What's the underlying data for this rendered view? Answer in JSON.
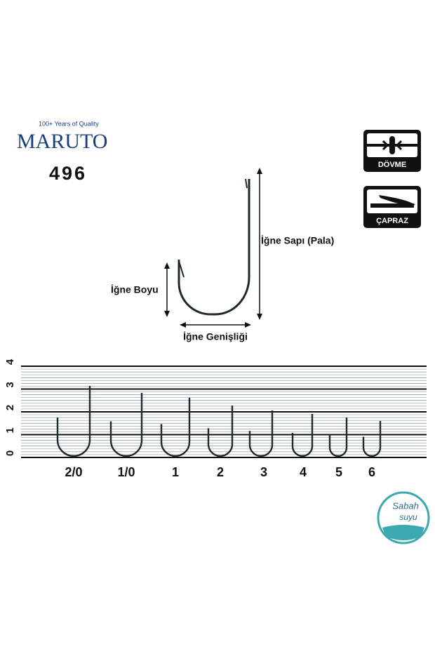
{
  "brand": {
    "tagline": "100+ Years of Quality",
    "name": "MARUTO",
    "model": "496"
  },
  "badges": [
    "DÖVME",
    "ÇAPRAZ"
  ],
  "diagram": {
    "shank": "İğne Sapı (Pala)",
    "length": "İğne Boyu",
    "width": "İğne Genişliği"
  },
  "ruler": {
    "ticks": [
      0,
      1,
      2,
      3,
      4
    ]
  },
  "sizes": [
    "2/0",
    "1/0",
    "1",
    "2",
    "3",
    "4",
    "5",
    "6"
  ],
  "logo": {
    "line1": "Sabah",
    "line2": "suyu"
  }
}
